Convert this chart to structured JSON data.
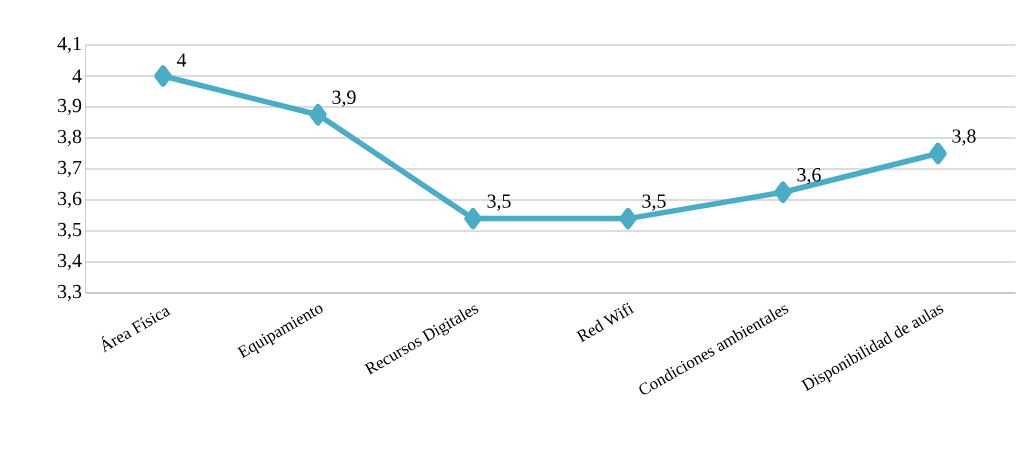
{
  "chart_data": {
    "type": "line",
    "categories": [
      "Área Física",
      "Equipamiento",
      "Recursos Digitales",
      "Red Wifi",
      "Condiciones ambientales",
      "Disponibilidad de aulas"
    ],
    "series": [
      {
        "color": "#4bacc6",
        "values": [
          4,
          3.875,
          3.54,
          3.54,
          3.625,
          3.75
        ],
        "value_labels": [
          "4",
          "3,9",
          "3,5",
          "3,5",
          "3,6",
          "3,8"
        ]
      }
    ],
    "ylim": [
      3.3,
      4.1
    ],
    "yticks": [
      {
        "value": 3.3,
        "label": "3,3"
      },
      {
        "value": 3.4,
        "label": "3,4"
      },
      {
        "value": 3.5,
        "label": "3,5"
      },
      {
        "value": 3.6,
        "label": "3,6"
      },
      {
        "value": 3.7,
        "label": "3,7"
      },
      {
        "value": 3.8,
        "label": "3,8"
      },
      {
        "value": 3.9,
        "label": "3,9"
      },
      4,
      {
        "value": 4.1,
        "label": "4,1"
      }
    ],
    "grid": "y",
    "marker": "diamond",
    "line_style": "solid"
  }
}
